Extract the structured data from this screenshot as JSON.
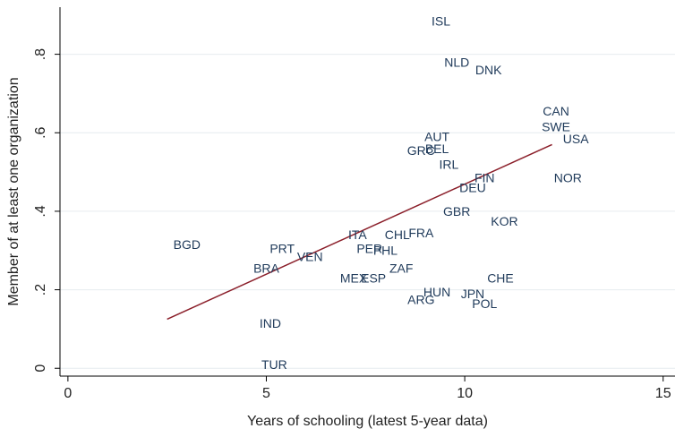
{
  "chart_data": {
    "type": "scatter",
    "xlabel": "Years of schooling (latest 5-year data)",
    "ylabel": "Member of at least one organization",
    "xlim": [
      -0.2,
      15.3
    ],
    "ylim": [
      -0.02,
      0.92
    ],
    "x_ticks": [
      0,
      5,
      10,
      15
    ],
    "x_tick_labels": [
      "0",
      "5",
      "10",
      "15"
    ],
    "y_ticks": [
      0,
      0.2,
      0.4,
      0.6,
      0.8
    ],
    "y_tick_labels": [
      "0",
      ".2",
      ".4",
      ".6",
      ".8"
    ],
    "grid": "horizontal",
    "marker_color": "#1f3a5a",
    "fit_line_color": "#8b1f2a",
    "points": [
      {
        "label": "ISL",
        "x": 9.4,
        "y": 0.885
      },
      {
        "label": "NLD",
        "x": 9.8,
        "y": 0.78
      },
      {
        "label": "DNK",
        "x": 10.6,
        "y": 0.76
      },
      {
        "label": "CAN",
        "x": 12.3,
        "y": 0.655
      },
      {
        "label": "SWE",
        "x": 12.3,
        "y": 0.615
      },
      {
        "label": "USA",
        "x": 12.8,
        "y": 0.585
      },
      {
        "label": "AUT",
        "x": 9.3,
        "y": 0.59
      },
      {
        "label": "BEL",
        "x": 9.3,
        "y": 0.56
      },
      {
        "label": "GRC",
        "x": 8.9,
        "y": 0.555
      },
      {
        "label": "IRL",
        "x": 9.6,
        "y": 0.52
      },
      {
        "label": "FIN",
        "x": 10.5,
        "y": 0.485
      },
      {
        "label": "NOR",
        "x": 12.6,
        "y": 0.485
      },
      {
        "label": "DEU",
        "x": 10.2,
        "y": 0.46
      },
      {
        "label": "GBR",
        "x": 9.8,
        "y": 0.4
      },
      {
        "label": "KOR",
        "x": 11.0,
        "y": 0.375
      },
      {
        "label": "BGD",
        "x": 3.0,
        "y": 0.315
      },
      {
        "label": "ITA",
        "x": 7.3,
        "y": 0.34
      },
      {
        "label": "CHL",
        "x": 8.3,
        "y": 0.34
      },
      {
        "label": "FRA",
        "x": 8.9,
        "y": 0.345
      },
      {
        "label": "PRT",
        "x": 5.4,
        "y": 0.305
      },
      {
        "label": "VEN",
        "x": 6.1,
        "y": 0.285
      },
      {
        "label": "PER",
        "x": 7.6,
        "y": 0.305
      },
      {
        "label": "PHL",
        "x": 8.0,
        "y": 0.3
      },
      {
        "label": "BRA",
        "x": 5.0,
        "y": 0.255
      },
      {
        "label": "ZAF",
        "x": 8.4,
        "y": 0.255
      },
      {
        "label": "MEX",
        "x": 7.2,
        "y": 0.23
      },
      {
        "label": "ESP",
        "x": 7.7,
        "y": 0.23
      },
      {
        "label": "CHE",
        "x": 10.9,
        "y": 0.23
      },
      {
        "label": "HUN",
        "x": 9.3,
        "y": 0.195
      },
      {
        "label": "JPN",
        "x": 10.2,
        "y": 0.19
      },
      {
        "label": "ARG",
        "x": 8.9,
        "y": 0.175
      },
      {
        "label": "POL",
        "x": 10.5,
        "y": 0.165
      },
      {
        "label": "IND",
        "x": 5.1,
        "y": 0.115
      },
      {
        "label": "TUR",
        "x": 5.2,
        "y": 0.01
      }
    ],
    "fit_line": {
      "x": [
        2.5,
        12.2
      ],
      "y": [
        0.125,
        0.57
      ]
    }
  }
}
